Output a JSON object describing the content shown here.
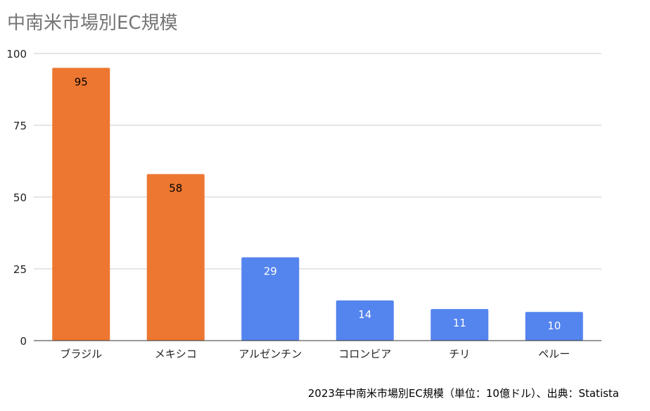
{
  "chart_data": {
    "type": "bar",
    "title": "中南米市場別EC規模",
    "footnote": "2023年中南米市場別EC規模（単位：10億ドル）、出典：Statista",
    "categories": [
      "ブラジル",
      "メキシコ",
      "アルゼンチン",
      "コロンビア",
      "チリ",
      "ペルー"
    ],
    "values": [
      95,
      58,
      29,
      14,
      11,
      10
    ],
    "bar_colors": [
      "#ED7730",
      "#ED7730",
      "#5484ED",
      "#5484ED",
      "#5484ED",
      "#5484ED"
    ],
    "label_colors": [
      "#000000",
      "#000000",
      "#FFFFFF",
      "#FFFFFF",
      "#FFFFFF",
      "#FFFFFF"
    ],
    "ylim": [
      0,
      100
    ],
    "yticks": [
      0,
      25,
      50,
      75,
      100
    ],
    "grid": true,
    "xlabel": "",
    "ylabel": ""
  }
}
